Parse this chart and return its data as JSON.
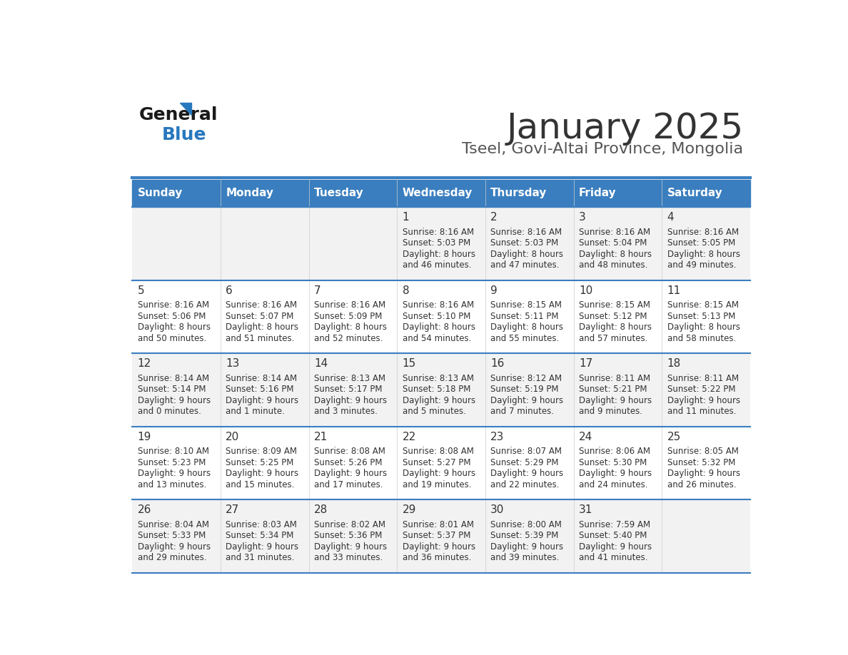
{
  "title": "January 2025",
  "subtitle": "Tseel, Govi-Altai Province, Mongolia",
  "days_of_week": [
    "Sunday",
    "Monday",
    "Tuesday",
    "Wednesday",
    "Thursday",
    "Friday",
    "Saturday"
  ],
  "header_bg": "#3a7ebf",
  "header_text": "#ffffff",
  "row_bg_odd": "#f2f2f2",
  "row_bg_even": "#ffffff",
  "cell_text": "#333333",
  "day_num_color": "#333333",
  "separator_color": "#3a7ebf",
  "title_color": "#333333",
  "subtitle_color": "#555555",
  "logo_general_color": "#1a1a1a",
  "logo_blue_color": "#2878be",
  "calendar_data": [
    [
      null,
      null,
      null,
      {
        "day": 1,
        "sunrise": "8:16 AM",
        "sunset": "5:03 PM",
        "daylight": "8 hours and 46 minutes."
      },
      {
        "day": 2,
        "sunrise": "8:16 AM",
        "sunset": "5:03 PM",
        "daylight": "8 hours and 47 minutes."
      },
      {
        "day": 3,
        "sunrise": "8:16 AM",
        "sunset": "5:04 PM",
        "daylight": "8 hours and 48 minutes."
      },
      {
        "day": 4,
        "sunrise": "8:16 AM",
        "sunset": "5:05 PM",
        "daylight": "8 hours and 49 minutes."
      }
    ],
    [
      {
        "day": 5,
        "sunrise": "8:16 AM",
        "sunset": "5:06 PM",
        "daylight": "8 hours and 50 minutes."
      },
      {
        "day": 6,
        "sunrise": "8:16 AM",
        "sunset": "5:07 PM",
        "daylight": "8 hours and 51 minutes."
      },
      {
        "day": 7,
        "sunrise": "8:16 AM",
        "sunset": "5:09 PM",
        "daylight": "8 hours and 52 minutes."
      },
      {
        "day": 8,
        "sunrise": "8:16 AM",
        "sunset": "5:10 PM",
        "daylight": "8 hours and 54 minutes."
      },
      {
        "day": 9,
        "sunrise": "8:15 AM",
        "sunset": "5:11 PM",
        "daylight": "8 hours and 55 minutes."
      },
      {
        "day": 10,
        "sunrise": "8:15 AM",
        "sunset": "5:12 PM",
        "daylight": "8 hours and 57 minutes."
      },
      {
        "day": 11,
        "sunrise": "8:15 AM",
        "sunset": "5:13 PM",
        "daylight": "8 hours and 58 minutes."
      }
    ],
    [
      {
        "day": 12,
        "sunrise": "8:14 AM",
        "sunset": "5:14 PM",
        "daylight": "9 hours and 0 minutes."
      },
      {
        "day": 13,
        "sunrise": "8:14 AM",
        "sunset": "5:16 PM",
        "daylight": "9 hours and 1 minute."
      },
      {
        "day": 14,
        "sunrise": "8:13 AM",
        "sunset": "5:17 PM",
        "daylight": "9 hours and 3 minutes."
      },
      {
        "day": 15,
        "sunrise": "8:13 AM",
        "sunset": "5:18 PM",
        "daylight": "9 hours and 5 minutes."
      },
      {
        "day": 16,
        "sunrise": "8:12 AM",
        "sunset": "5:19 PM",
        "daylight": "9 hours and 7 minutes."
      },
      {
        "day": 17,
        "sunrise": "8:11 AM",
        "sunset": "5:21 PM",
        "daylight": "9 hours and 9 minutes."
      },
      {
        "day": 18,
        "sunrise": "8:11 AM",
        "sunset": "5:22 PM",
        "daylight": "9 hours and 11 minutes."
      }
    ],
    [
      {
        "day": 19,
        "sunrise": "8:10 AM",
        "sunset": "5:23 PM",
        "daylight": "9 hours and 13 minutes."
      },
      {
        "day": 20,
        "sunrise": "8:09 AM",
        "sunset": "5:25 PM",
        "daylight": "9 hours and 15 minutes."
      },
      {
        "day": 21,
        "sunrise": "8:08 AM",
        "sunset": "5:26 PM",
        "daylight": "9 hours and 17 minutes."
      },
      {
        "day": 22,
        "sunrise": "8:08 AM",
        "sunset": "5:27 PM",
        "daylight": "9 hours and 19 minutes."
      },
      {
        "day": 23,
        "sunrise": "8:07 AM",
        "sunset": "5:29 PM",
        "daylight": "9 hours and 22 minutes."
      },
      {
        "day": 24,
        "sunrise": "8:06 AM",
        "sunset": "5:30 PM",
        "daylight": "9 hours and 24 minutes."
      },
      {
        "day": 25,
        "sunrise": "8:05 AM",
        "sunset": "5:32 PM",
        "daylight": "9 hours and 26 minutes."
      }
    ],
    [
      {
        "day": 26,
        "sunrise": "8:04 AM",
        "sunset": "5:33 PM",
        "daylight": "9 hours and 29 minutes."
      },
      {
        "day": 27,
        "sunrise": "8:03 AM",
        "sunset": "5:34 PM",
        "daylight": "9 hours and 31 minutes."
      },
      {
        "day": 28,
        "sunrise": "8:02 AM",
        "sunset": "5:36 PM",
        "daylight": "9 hours and 33 minutes."
      },
      {
        "day": 29,
        "sunrise": "8:01 AM",
        "sunset": "5:37 PM",
        "daylight": "9 hours and 36 minutes."
      },
      {
        "day": 30,
        "sunrise": "8:00 AM",
        "sunset": "5:39 PM",
        "daylight": "9 hours and 39 minutes."
      },
      {
        "day": 31,
        "sunrise": "7:59 AM",
        "sunset": "5:40 PM",
        "daylight": "9 hours and 41 minutes."
      },
      null
    ]
  ]
}
